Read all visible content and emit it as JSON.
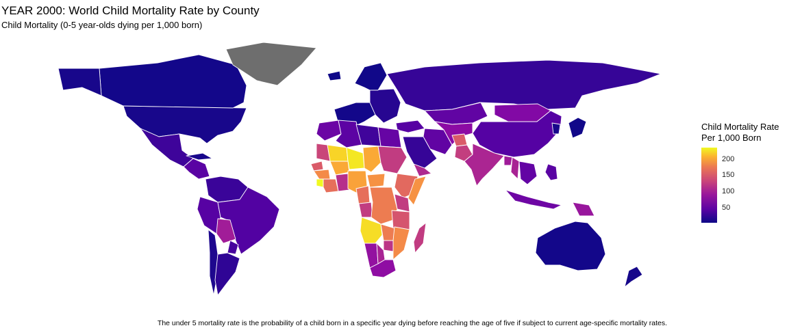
{
  "title": "YEAR 2000: World Child Mortality Rate by County",
  "subtitle": "Child Mortality (0-5 year-olds dying per 1,000 born)",
  "caption": "The under 5 mortality rate is the probability of a child born in a specific year dying before reaching the age of five if subject to current age-specific mortality rates.",
  "legend": {
    "title_line1": "Child Mortality Rate",
    "title_line2": "Per 1,000 Born",
    "ticks": [
      {
        "value": 200,
        "label": "200"
      },
      {
        "value": 150,
        "label": "150"
      },
      {
        "value": 100,
        "label": "100"
      },
      {
        "value": 50,
        "label": "50"
      }
    ],
    "scale": {
      "min": 3,
      "max": 235,
      "palette": "plasma"
    }
  },
  "colors": {
    "low": "#0d0887",
    "high": "#f0f921",
    "no_data": "#6e6e6e",
    "border": "#ffffff"
  },
  "chart_data": {
    "type": "choropleth",
    "year": 2000,
    "regions": [
      {
        "name": "USA",
        "value": 8
      },
      {
        "name": "Canada",
        "value": 6
      },
      {
        "name": "Alaska",
        "value": 8
      },
      {
        "name": "Greenland",
        "value": null
      },
      {
        "name": "Mexico",
        "value": 26
      },
      {
        "name": "Central America",
        "value": 40
      },
      {
        "name": "Cuba",
        "value": 8
      },
      {
        "name": "Colombia & Venezuela",
        "value": 24
      },
      {
        "name": "Peru & Ecuador",
        "value": 38
      },
      {
        "name": "Brazil",
        "value": 35
      },
      {
        "name": "Bolivia",
        "value": 85
      },
      {
        "name": "Paraguay",
        "value": 30
      },
      {
        "name": "Chile",
        "value": 11
      },
      {
        "name": "Argentina",
        "value": 19
      },
      {
        "name": "Western Europe",
        "value": 6
      },
      {
        "name": "Eastern Europe",
        "value": 15
      },
      {
        "name": "Scandinavia",
        "value": 5
      },
      {
        "name": "Iceland",
        "value": 4
      },
      {
        "name": "Russia",
        "value": 22
      },
      {
        "name": "Kazakhstan",
        "value": 44
      },
      {
        "name": "Mongolia",
        "value": 64
      },
      {
        "name": "China",
        "value": 37
      },
      {
        "name": "Japan",
        "value": 5
      },
      {
        "name": "Korea",
        "value": 8
      },
      {
        "name": "Turkey",
        "value": 38
      },
      {
        "name": "Iran",
        "value": 44
      },
      {
        "name": "Central Asia",
        "value": 70
      },
      {
        "name": "Afghanistan",
        "value": 135
      },
      {
        "name": "Pakistan",
        "value": 112
      },
      {
        "name": "India",
        "value": 92
      },
      {
        "name": "Bangladesh",
        "value": 84
      },
      {
        "name": "Myanmar",
        "value": 90
      },
      {
        "name": "Southeast Asia",
        "value": 45
      },
      {
        "name": "Indonesia",
        "value": 52
      },
      {
        "name": "Papua New Guinea",
        "value": 79
      },
      {
        "name": "Philippines",
        "value": 40
      },
      {
        "name": "Australia",
        "value": 6
      },
      {
        "name": "New Zealand",
        "value": 7
      },
      {
        "name": "Saudi Arabia",
        "value": 22
      },
      {
        "name": "Yemen",
        "value": 95
      },
      {
        "name": "Morocco",
        "value": 50
      },
      {
        "name": "Algeria",
        "value": 41
      },
      {
        "name": "Libya",
        "value": 27
      },
      {
        "name": "Egypt",
        "value": 47
      },
      {
        "name": "Mauritania",
        "value": 118
      },
      {
        "name": "Mali",
        "value": 215
      },
      {
        "name": "Niger",
        "value": 225
      },
      {
        "name": "Chad",
        "value": 190
      },
      {
        "name": "Sudan",
        "value": 110
      },
      {
        "name": "Senegal & Gambia",
        "value": 135
      },
      {
        "name": "Guinea",
        "value": 170
      },
      {
        "name": "Sierra Leone",
        "value": 235
      },
      {
        "name": "Liberia & Ivory Coast",
        "value": 150
      },
      {
        "name": "Burkina Faso",
        "value": 190
      },
      {
        "name": "Ghana",
        "value": 100
      },
      {
        "name": "Nigeria",
        "value": 185
      },
      {
        "name": "Central African Republic",
        "value": 175
      },
      {
        "name": "Cameroon",
        "value": 150
      },
      {
        "name": "Ethiopia",
        "value": 145
      },
      {
        "name": "Somalia",
        "value": 175
      },
      {
        "name": "Kenya",
        "value": 110
      },
      {
        "name": "Gabon & Congo",
        "value": 110
      },
      {
        "name": "DR Congo",
        "value": 160
      },
      {
        "name": "Tanzania",
        "value": 130
      },
      {
        "name": "Angola",
        "value": 220
      },
      {
        "name": "Zambia",
        "value": 160
      },
      {
        "name": "Mozambique",
        "value": 170
      },
      {
        "name": "Zimbabwe",
        "value": 105
      },
      {
        "name": "Namibia",
        "value": 75
      },
      {
        "name": "Botswana",
        "value": 90
      },
      {
        "name": "South Africa",
        "value": 72
      },
      {
        "name": "Madagascar",
        "value": 110
      }
    ]
  }
}
